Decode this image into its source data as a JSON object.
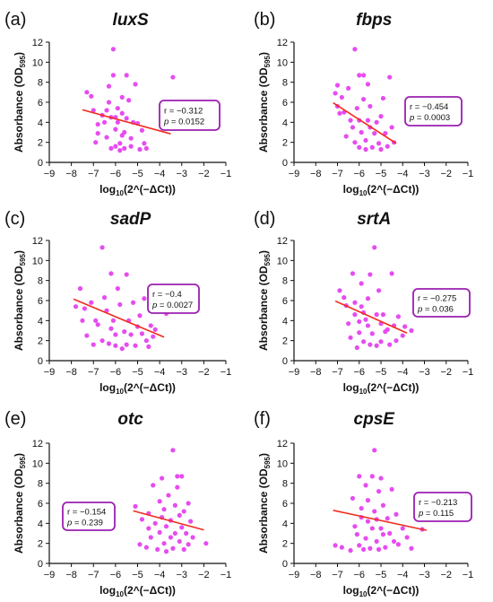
{
  "colors": {
    "point": "#e64cf0",
    "fit": "#f02b1e",
    "box": "#9b1fb0",
    "axis": "#111111"
  },
  "chart_data": [
    {
      "type": "scatter",
      "panel": "(a)",
      "title": "luxS",
      "xlabel": "log10(2^(−ΔCt))",
      "ylabel": "Absorbance (OD595)",
      "xlim": [
        -9,
        -1
      ],
      "ylim": [
        0,
        12
      ],
      "xticks": [
        "−9",
        "−8",
        "−7",
        "−6",
        "−5",
        "−4",
        "−3",
        "−2",
        "−1"
      ],
      "yticks": [
        "0",
        "2",
        "4",
        "6",
        "8",
        "10",
        "12"
      ],
      "points": [
        [
          -7.3,
          7.0
        ],
        [
          -7.1,
          6.6
        ],
        [
          -7.0,
          5.2
        ],
        [
          -6.9,
          2.0
        ],
        [
          -6.8,
          3.8
        ],
        [
          -6.8,
          2.9
        ],
        [
          -6.6,
          4.7
        ],
        [
          -6.5,
          4.0
        ],
        [
          -6.4,
          2.5
        ],
        [
          -6.4,
          5.2
        ],
        [
          -6.3,
          7.6
        ],
        [
          -6.3,
          6.0
        ],
        [
          -6.2,
          4.5
        ],
        [
          -6.2,
          1.4
        ],
        [
          -6.1,
          11.3
        ],
        [
          -6.1,
          8.7
        ],
        [
          -6.0,
          4.5
        ],
        [
          -6.0,
          3.3
        ],
        [
          -6.0,
          1.6
        ],
        [
          -5.9,
          5.4
        ],
        [
          -5.9,
          4.0
        ],
        [
          -5.8,
          1.9
        ],
        [
          -5.8,
          1.2
        ],
        [
          -5.7,
          6.5
        ],
        [
          -5.7,
          4.9
        ],
        [
          -5.7,
          2.7
        ],
        [
          -5.6,
          3.0
        ],
        [
          -5.6,
          1.4
        ],
        [
          -5.5,
          8.7
        ],
        [
          -5.5,
          4.4
        ],
        [
          -5.4,
          6.2
        ],
        [
          -5.3,
          2.4
        ],
        [
          -5.3,
          1.6
        ],
        [
          -5.2,
          4.0
        ],
        [
          -5.1,
          7.8
        ],
        [
          -5.0,
          3.9
        ],
        [
          -4.9,
          1.3
        ],
        [
          -4.8,
          3.2
        ],
        [
          -4.7,
          1.9
        ],
        [
          -4.6,
          1.4
        ],
        [
          -3.4,
          8.5
        ]
      ],
      "fit": {
        "x": [
          -7.5,
          -3.5
        ],
        "y": [
          5.25,
          2.85
        ]
      },
      "stats": {
        "r": "r = −0.312",
        "p_label": "p",
        "p_value": "= 0.0152"
      }
    },
    {
      "type": "scatter",
      "panel": "(b)",
      "title": "fbps",
      "xlabel": "log10(2^(−ΔCt))",
      "ylabel": "Absorbance (OD595)",
      "xlim": [
        -9,
        -1
      ],
      "ylim": [
        0,
        12
      ],
      "xticks": [
        "−9",
        "−8",
        "−7",
        "−6",
        "−5",
        "−4",
        "−3",
        "−2",
        "−1"
      ],
      "yticks": [
        "0",
        "2",
        "4",
        "6",
        "8",
        "10",
        "12"
      ],
      "points": [
        [
          -7.1,
          6.9
        ],
        [
          -7.0,
          7.7
        ],
        [
          -7.0,
          5.6
        ],
        [
          -6.9,
          4.9
        ],
        [
          -6.8,
          6.5
        ],
        [
          -6.7,
          5.0
        ],
        [
          -6.6,
          2.6
        ],
        [
          -6.5,
          7.4
        ],
        [
          -6.4,
          4.2
        ],
        [
          -6.3,
          3.5
        ],
        [
          -6.2,
          11.3
        ],
        [
          -6.2,
          2.0
        ],
        [
          -6.1,
          5.4
        ],
        [
          -6.0,
          8.7
        ],
        [
          -6.0,
          4.2
        ],
        [
          -6.0,
          1.5
        ],
        [
          -5.9,
          3.0
        ],
        [
          -5.8,
          8.7
        ],
        [
          -5.8,
          6.3
        ],
        [
          -5.7,
          2.2
        ],
        [
          -5.7,
          1.3
        ],
        [
          -5.6,
          7.8
        ],
        [
          -5.6,
          4.2
        ],
        [
          -5.5,
          5.6
        ],
        [
          -5.5,
          3.5
        ],
        [
          -5.4,
          1.5
        ],
        [
          -5.3,
          2.9
        ],
        [
          -5.2,
          4.0
        ],
        [
          -5.1,
          1.9
        ],
        [
          -5.0,
          4.6
        ],
        [
          -5.0,
          1.3
        ],
        [
          -4.9,
          6.4
        ],
        [
          -4.8,
          2.9
        ],
        [
          -4.7,
          1.6
        ],
        [
          -4.6,
          8.5
        ],
        [
          -4.5,
          3.5
        ],
        [
          -4.4,
          2.0
        ]
      ],
      "fit": {
        "x": [
          -7.2,
          -4.3
        ],
        "y": [
          5.95,
          1.9
        ]
      },
      "stats": {
        "r": "r = −0.454",
        "p_label": "p",
        "p_value": "= 0.0003"
      }
    },
    {
      "type": "scatter",
      "panel": "(c)",
      "title": "sadP",
      "xlabel": "log10(2^(−ΔCt))",
      "ylabel": "Absorbance (OD595)",
      "xlim": [
        -9,
        -1
      ],
      "ylim": [
        0,
        12
      ],
      "xticks": [
        "−9",
        "−8",
        "−7",
        "−6",
        "−5",
        "−4",
        "−3",
        "−2",
        "−1"
      ],
      "yticks": [
        "0",
        "2",
        "4",
        "6",
        "8",
        "10",
        "12"
      ],
      "points": [
        [
          -7.8,
          5.4
        ],
        [
          -7.6,
          7.2
        ],
        [
          -7.5,
          4.0
        ],
        [
          -7.4,
          5.2
        ],
        [
          -7.3,
          2.5
        ],
        [
          -7.1,
          5.8
        ],
        [
          -7.0,
          1.6
        ],
        [
          -6.9,
          4.0
        ],
        [
          -6.8,
          3.6
        ],
        [
          -6.6,
          11.3
        ],
        [
          -6.6,
          2.0
        ],
        [
          -6.5,
          6.3
        ],
        [
          -6.4,
          5.0
        ],
        [
          -6.3,
          1.7
        ],
        [
          -6.2,
          8.7
        ],
        [
          -6.2,
          3.2
        ],
        [
          -6.1,
          4.0
        ],
        [
          -6.0,
          2.6
        ],
        [
          -6.0,
          1.5
        ],
        [
          -5.9,
          7.2
        ],
        [
          -5.8,
          5.6
        ],
        [
          -5.7,
          1.2
        ],
        [
          -5.6,
          2.9
        ],
        [
          -5.5,
          8.6
        ],
        [
          -5.5,
          1.6
        ],
        [
          -5.4,
          4.0
        ],
        [
          -5.3,
          2.6
        ],
        [
          -5.2,
          5.8
        ],
        [
          -5.1,
          1.5
        ],
        [
          -5.0,
          3.4
        ],
        [
          -4.9,
          4.5
        ],
        [
          -4.8,
          2.7
        ],
        [
          -4.7,
          6.2
        ],
        [
          -4.6,
          2.0
        ],
        [
          -4.5,
          1.4
        ],
        [
          -4.4,
          3.5
        ],
        [
          -4.3,
          2.4
        ],
        [
          -4.2,
          3.1
        ],
        [
          -3.7,
          4.7
        ]
      ],
      "fit": {
        "x": [
          -7.9,
          -3.8
        ],
        "y": [
          6.15,
          2.35
        ]
      },
      "stats": {
        "r": "r = −0.4",
        "p_label": "p",
        "p_value": "= 0.0027"
      }
    },
    {
      "type": "scatter",
      "panel": "(d)",
      "title": "srtA",
      "xlabel": "log10(2^(−ΔCt))",
      "ylabel": "Absorbance (OD595)",
      "xlim": [
        -9,
        -1
      ],
      "ylim": [
        0,
        12
      ],
      "xticks": [
        "−9",
        "−8",
        "−7",
        "−6",
        "−5",
        "−4",
        "−3",
        "−2",
        "−1"
      ],
      "yticks": [
        "0",
        "2",
        "4",
        "6",
        "8",
        "10",
        "12"
      ],
      "points": [
        [
          -6.9,
          7.0
        ],
        [
          -6.7,
          6.3
        ],
        [
          -6.6,
          5.5
        ],
        [
          -6.5,
          3.7
        ],
        [
          -6.4,
          2.3
        ],
        [
          -6.3,
          8.7
        ],
        [
          -6.2,
          5.8
        ],
        [
          -6.2,
          4.6
        ],
        [
          -6.1,
          1.3
        ],
        [
          -6.0,
          3.9
        ],
        [
          -6.0,
          2.8
        ],
        [
          -5.9,
          7.7
        ],
        [
          -5.9,
          5.4
        ],
        [
          -5.8,
          4.8
        ],
        [
          -5.8,
          1.9
        ],
        [
          -5.7,
          4.1
        ],
        [
          -5.6,
          6.2
        ],
        [
          -5.6,
          3.5
        ],
        [
          -5.5,
          1.6
        ],
        [
          -5.5,
          8.6
        ],
        [
          -5.4,
          2.7
        ],
        [
          -5.3,
          11.3
        ],
        [
          -5.2,
          4.6
        ],
        [
          -5.2,
          1.5
        ],
        [
          -5.1,
          7.0
        ],
        [
          -5.0,
          3.7
        ],
        [
          -5.0,
          1.9
        ],
        [
          -4.9,
          4.6
        ],
        [
          -4.8,
          2.9
        ],
        [
          -4.7,
          3.1
        ],
        [
          -4.6,
          1.6
        ],
        [
          -4.5,
          8.7
        ],
        [
          -4.4,
          3.5
        ],
        [
          -4.3,
          2.0
        ],
        [
          -4.2,
          4.4
        ],
        [
          -4.0,
          2.5
        ],
        [
          -3.9,
          3.4
        ],
        [
          -3.6,
          3.0
        ]
      ],
      "fit": {
        "x": [
          -7.1,
          -3.8
        ],
        "y": [
          5.95,
          2.75
        ]
      },
      "stats": {
        "r": "r = −0.275",
        "p_label": "p",
        "p_value": "= 0.036"
      }
    },
    {
      "type": "scatter",
      "panel": "(e)",
      "title": "otc",
      "xlabel": "log10(2^(−ΔCt))",
      "ylabel": "Absorbance (OD595)",
      "xlim": [
        -9,
        -1
      ],
      "ylim": [
        0,
        12
      ],
      "xticks": [
        "−9",
        "−8",
        "−7",
        "−6",
        "−5",
        "−4",
        "−3",
        "−2",
        "−1"
      ],
      "yticks": [
        "0",
        "2",
        "4",
        "6",
        "8",
        "10",
        "12"
      ],
      "points": [
        [
          -5.1,
          5.7
        ],
        [
          -4.9,
          1.9
        ],
        [
          -4.8,
          4.4
        ],
        [
          -4.6,
          1.6
        ],
        [
          -4.5,
          3.5
        ],
        [
          -4.5,
          5.0
        ],
        [
          -4.4,
          2.6
        ],
        [
          -4.3,
          7.8
        ],
        [
          -4.2,
          4.0
        ],
        [
          -4.1,
          1.4
        ],
        [
          -4.0,
          6.2
        ],
        [
          -4.0,
          3.1
        ],
        [
          -3.9,
          8.5
        ],
        [
          -3.9,
          4.6
        ],
        [
          -3.8,
          2.0
        ],
        [
          -3.8,
          5.4
        ],
        [
          -3.7,
          1.2
        ],
        [
          -3.7,
          3.7
        ],
        [
          -3.6,
          6.8
        ],
        [
          -3.5,
          2.6
        ],
        [
          -3.5,
          4.3
        ],
        [
          -3.4,
          11.3
        ],
        [
          -3.4,
          1.5
        ],
        [
          -3.3,
          5.8
        ],
        [
          -3.3,
          3.0
        ],
        [
          -3.2,
          8.7
        ],
        [
          -3.2,
          7.6
        ],
        [
          -3.1,
          4.8
        ],
        [
          -3.1,
          2.2
        ],
        [
          -3.0,
          8.7
        ],
        [
          -3.0,
          3.6
        ],
        [
          -2.9,
          1.4
        ],
        [
          -2.9,
          5.2
        ],
        [
          -2.8,
          3.0
        ],
        [
          -2.7,
          6.0
        ],
        [
          -2.7,
          1.9
        ],
        [
          -2.6,
          4.2
        ],
        [
          -2.5,
          2.6
        ],
        [
          -1.9,
          2.0
        ]
      ],
      "fit": {
        "x": [
          -5.2,
          -2.0
        ],
        "y": [
          5.25,
          3.35
        ]
      },
      "stats": {
        "r": "r = −0.154",
        "p_label": "p",
        "p_value": "= 0.239"
      }
    },
    {
      "type": "scatter",
      "panel": "(f)",
      "title": "cpsE",
      "xlabel": "log10(2^(−ΔCt))",
      "ylabel": "Absorbance (OD595)",
      "xlim": [
        -9,
        -1
      ],
      "ylim": [
        0,
        12
      ],
      "xticks": [
        "−9",
        "−8",
        "−7",
        "−6",
        "−5",
        "−4",
        "−3",
        "−2",
        "−1"
      ],
      "yticks": [
        "0",
        "2",
        "4",
        "6",
        "8",
        "10",
        "12"
      ],
      "points": [
        [
          -7.1,
          1.8
        ],
        [
          -6.8,
          1.6
        ],
        [
          -6.4,
          1.3
        ],
        [
          -6.3,
          6.5
        ],
        [
          -6.2,
          3.7
        ],
        [
          -6.1,
          2.9
        ],
        [
          -6.0,
          8.7
        ],
        [
          -6.0,
          1.8
        ],
        [
          -5.9,
          5.5
        ],
        [
          -5.9,
          4.6
        ],
        [
          -5.8,
          1.4
        ],
        [
          -5.7,
          7.8
        ],
        [
          -5.7,
          2.5
        ],
        [
          -5.6,
          4.2
        ],
        [
          -5.6,
          6.3
        ],
        [
          -5.5,
          1.5
        ],
        [
          -5.4,
          8.7
        ],
        [
          -5.4,
          3.5
        ],
        [
          -5.3,
          11.3
        ],
        [
          -5.3,
          5.2
        ],
        [
          -5.2,
          2.2
        ],
        [
          -5.2,
          4.4
        ],
        [
          -5.1,
          7.2
        ],
        [
          -5.1,
          1.4
        ],
        [
          -5.0,
          3.5
        ],
        [
          -5.0,
          8.5
        ],
        [
          -4.9,
          2.9
        ],
        [
          -4.9,
          5.8
        ],
        [
          -4.8,
          1.6
        ],
        [
          -4.7,
          4.5
        ],
        [
          -4.6,
          3.0
        ],
        [
          -4.5,
          7.4
        ],
        [
          -4.4,
          2.2
        ],
        [
          -4.3,
          4.9
        ],
        [
          -4.2,
          1.9
        ],
        [
          -4.0,
          3.5
        ],
        [
          -3.8,
          2.6
        ],
        [
          -3.6,
          1.5
        ],
        [
          -3.1,
          3.4
        ]
      ],
      "fit": {
        "x": [
          -7.2,
          -2.9
        ],
        "y": [
          5.3,
          3.3
        ]
      },
      "stats": {
        "r": "r = −0.213",
        "p_label": "p",
        "p_value": "= 0.115"
      }
    }
  ]
}
